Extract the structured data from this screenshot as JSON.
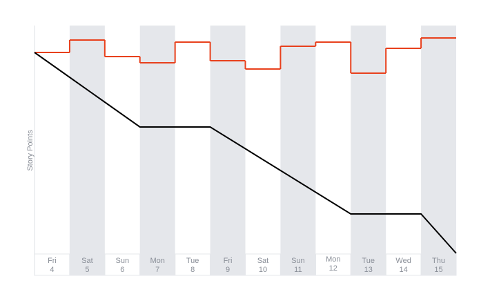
{
  "chart_data": {
    "type": "line",
    "y_label": "Story Points",
    "categories": [
      "Fri",
      "Sat",
      "Sun",
      "Mon",
      "Tue",
      "Fri",
      "Sat",
      "Sun",
      "Mon",
      "Tue",
      "Wed",
      "Thu"
    ],
    "dates": [
      "4",
      "5",
      "6",
      "7",
      "8",
      "9",
      "10",
      "11",
      "12",
      "13",
      "14",
      "15"
    ],
    "ylim": [
      0,
      110
    ],
    "series": [
      {
        "color": "#e8401c",
        "step": true,
        "values": [
          97,
          103,
          95,
          92,
          102,
          93,
          89,
          100,
          102,
          87,
          99,
          104
        ]
      },
      {
        "color": "#000000",
        "x": [
          0,
          1,
          2,
          3,
          4,
          5,
          6,
          7,
          8,
          9,
          10,
          11,
          12
        ],
        "values": [
          97,
          85,
          73,
          61,
          61,
          61,
          50.5,
          40,
          29.5,
          19,
          19,
          19,
          0
        ]
      }
    ]
  }
}
